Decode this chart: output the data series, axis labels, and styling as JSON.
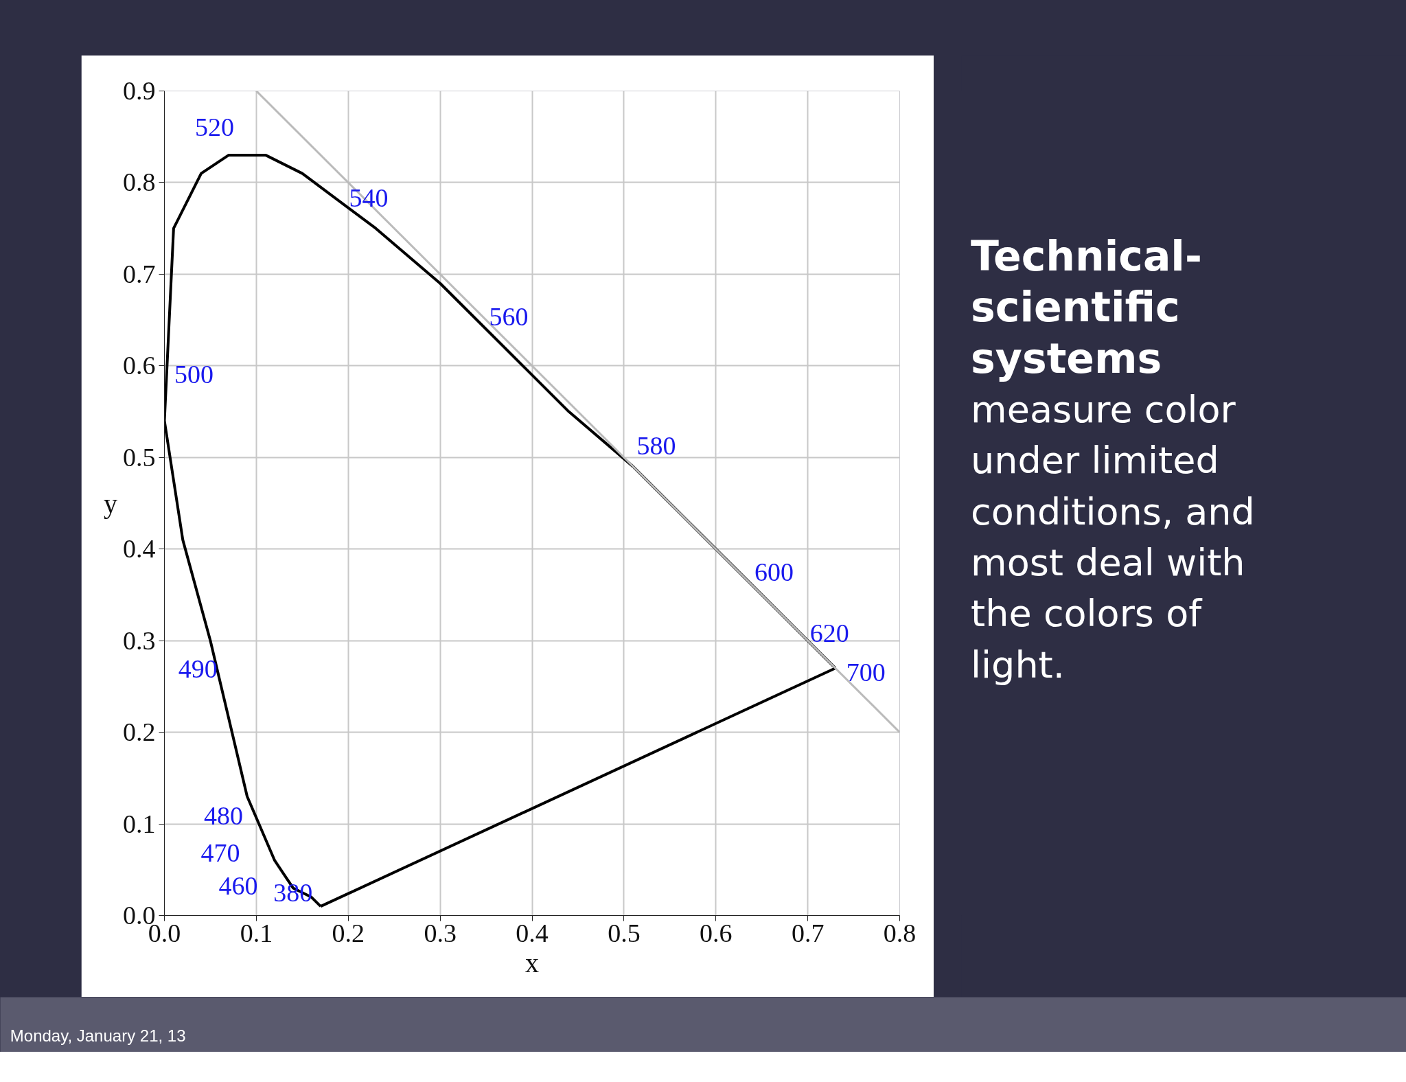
{
  "chart_data": {
    "type": "line",
    "title": "Technical-scientific systems",
    "subtitle": "measure color under limited conditions, and most deal with the colors of light.",
    "xlabel": "x",
    "ylabel": "y",
    "series": [
      {
        "color": "#000000",
        "x": [
          0.17,
          0.16,
          0.14,
          0.12,
          0.09,
          0.05,
          0.02,
          0.0,
          0.01,
          0.04,
          0.07,
          0.11,
          0.15,
          0.23,
          0.3,
          0.37,
          0.44,
          0.51,
          0.58,
          0.63,
          0.67,
          0.69,
          0.72,
          0.73
        ],
        "values": [
          0.01,
          0.02,
          0.03,
          0.06,
          0.13,
          0.3,
          0.41,
          0.54,
          0.75,
          0.81,
          0.83,
          0.83,
          0.81,
          0.75,
          0.69,
          0.62,
          0.55,
          0.49,
          0.42,
          0.37,
          0.33,
          0.31,
          0.28,
          0.27
        ]
      },
      {
        "color": "#000000",
        "x": [
          0.17,
          0.73
        ],
        "values": [
          0.01,
          0.27
        ]
      },
      {
        "color": "#bbbbbb",
        "x": [
          0.1,
          0.8
        ],
        "values": [
          0.9,
          0.2
        ]
      }
    ],
    "annotations": [
      {
        "text": "380",
        "x": 0.17,
        "y": 0.01
      },
      {
        "text": "460",
        "x": 0.14,
        "y": 0.03
      },
      {
        "text": "470",
        "x": 0.12,
        "y": 0.06
      },
      {
        "text": "480",
        "x": 0.09,
        "y": 0.13
      },
      {
        "text": "490",
        "x": 0.05,
        "y": 0.3
      },
      {
        "text": "500",
        "x": 0.0,
        "y": 0.54
      },
      {
        "text": "520",
        "x": 0.07,
        "y": 0.83
      },
      {
        "text": "540",
        "x": 0.23,
        "y": 0.75
      },
      {
        "text": "560",
        "x": 0.37,
        "y": 0.62
      },
      {
        "text": "580",
        "x": 0.51,
        "y": 0.49
      },
      {
        "text": "600",
        "x": 0.63,
        "y": 0.37
      },
      {
        "text": "620",
        "x": 0.69,
        "y": 0.31
      },
      {
        "text": "700",
        "x": 0.73,
        "y": 0.27
      },
      "Monday, January 21, 13"
    ],
    "xlim": [
      0,
      0.8
    ],
    "ylim": [
      0,
      0.9
    ],
    "xticks": [
      {
        "value": 0,
        "label": "0.0"
      },
      0.1,
      0.2,
      0.3,
      0.4,
      0.5,
      0.6,
      0.7,
      0.8
    ],
    "yticks": [
      {
        "value": 0,
        "label": "0.0"
      },
      0.1,
      0.2,
      0.3,
      0.4,
      0.5,
      0.6,
      0.7,
      0.8,
      0.9
    ],
    "grid": true,
    "marker": "none",
    "line_style": "solid"
  }
}
